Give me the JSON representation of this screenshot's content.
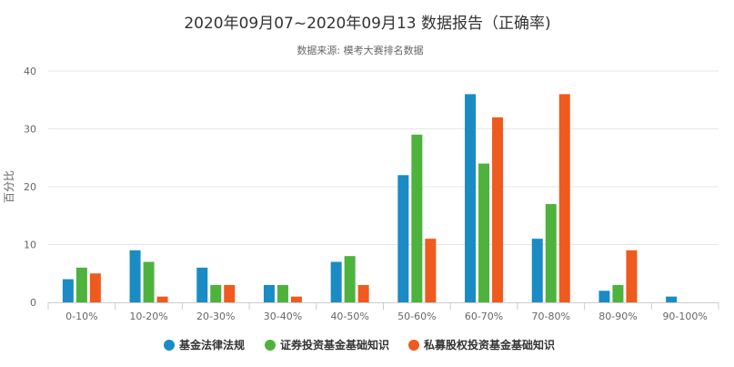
{
  "chart_data": {
    "type": "bar",
    "title": "2020年09月07~2020年09月13 数据报告（正确率)",
    "subtitle": "数据来源: 模考大赛排名数据",
    "xlabel": "",
    "ylabel": "百分比",
    "ylim": [
      0,
      40
    ],
    "yticks": [
      "0",
      "10",
      "20",
      "30",
      "40"
    ],
    "grid": true,
    "legend_position": "bottom",
    "categories": [
      "0-10%",
      "10-20%",
      "20-30%",
      "30-40%",
      "40-50%",
      "50-60%",
      "60-70%",
      "70-80%",
      "80-90%",
      "90-100%"
    ],
    "series": [
      {
        "name": "基金法律法规",
        "color": "#1a8bc4",
        "values": [
          4,
          9,
          6,
          3,
          7,
          22,
          36,
          11,
          2,
          1
        ]
      },
      {
        "name": "证券投资基金基础知识",
        "color": "#4db33d",
        "values": [
          6,
          7,
          3,
          3,
          8,
          29,
          24,
          17,
          3,
          0
        ]
      },
      {
        "name": "私募股权投资基金基础知识",
        "color": "#ef5a1e",
        "values": [
          5,
          1,
          3,
          1,
          3,
          11,
          32,
          36,
          9,
          0
        ]
      }
    ]
  }
}
